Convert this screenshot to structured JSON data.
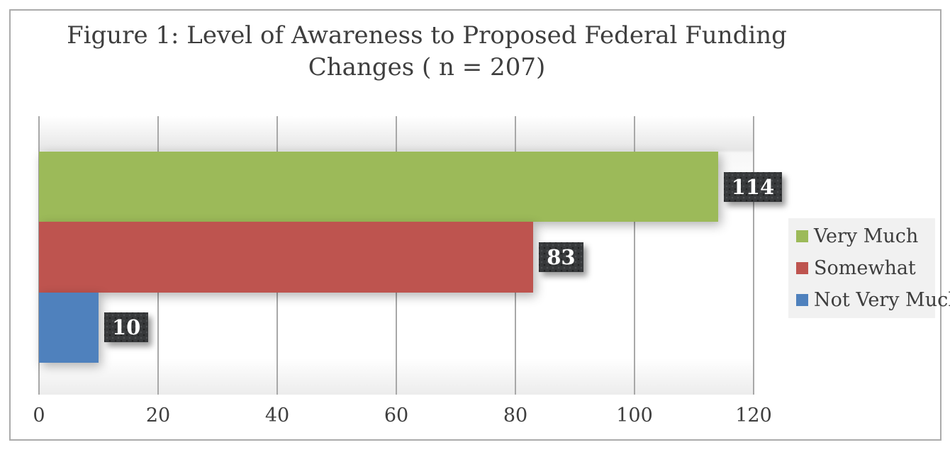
{
  "figure": {
    "title_line1": "Figure 1: Level of Awareness to Proposed Federal Funding",
    "title_line2": "Changes ( n = 207)"
  },
  "chart_data": {
    "type": "bar",
    "orientation": "horizontal",
    "title": "Figure 1: Level of Awareness to Proposed Federal Funding Changes ( n = 207)",
    "categories": [
      "Very Much",
      "Somewhat",
      "Not Very Much"
    ],
    "values": [
      114,
      83,
      10
    ],
    "data_labels": [
      "114",
      "83",
      "10"
    ],
    "series_colors": [
      "#9cba59",
      "#be544f",
      "#4f81bd"
    ],
    "xlabel": "",
    "ylabel": "",
    "xlim": [
      0,
      120
    ],
    "x_ticks": [
      0,
      20,
      40,
      60,
      80,
      100,
      120
    ],
    "grid": true,
    "legend_position": "right",
    "legend_entries": [
      "Very Much",
      "Somewhat",
      "Not Very Much"
    ],
    "label_box_color": "#37393b",
    "label_text_color": "#ffffff",
    "title_color": "#3e3e3e",
    "gridline_color": "#a8a8a8",
    "legend_bg_color": "#f1f1f1"
  }
}
